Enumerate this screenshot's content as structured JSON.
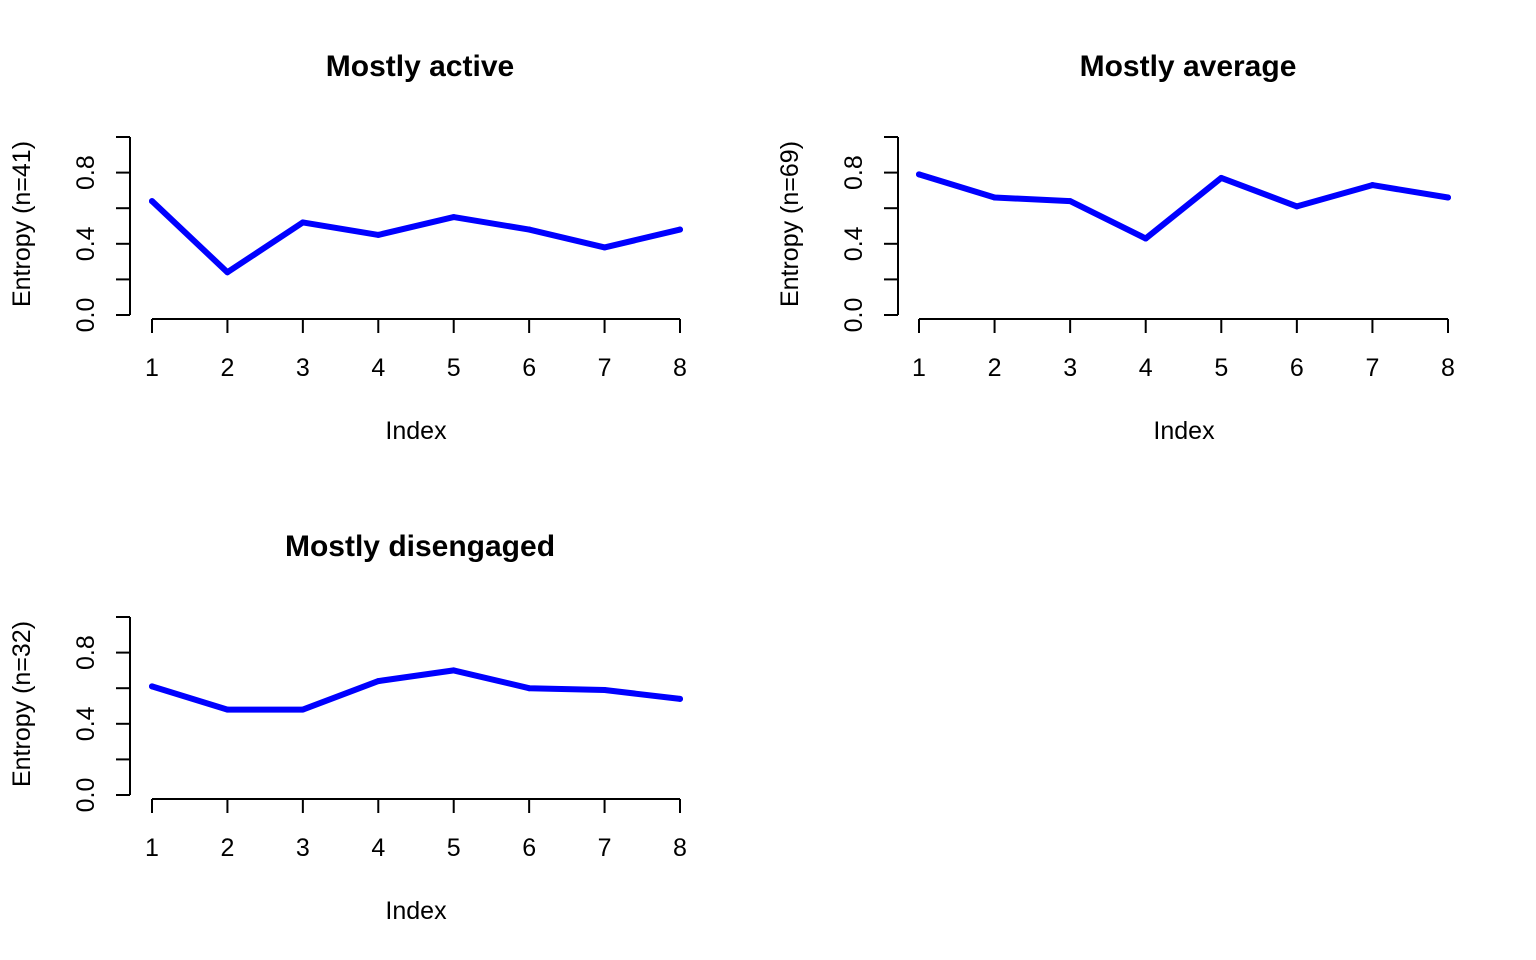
{
  "chart_data": [
    {
      "type": "line",
      "title": "Mostly active",
      "xlabel": "Index",
      "ylabel": "Entropy (n=41)",
      "x": [
        1,
        2,
        3,
        4,
        5,
        6,
        7,
        8
      ],
      "x_ticks": [
        "1",
        "2",
        "3",
        "4",
        "5",
        "6",
        "7",
        "8"
      ],
      "y_ticks": [
        "0.0",
        "0.4",
        "0.8"
      ],
      "ylim": [
        0,
        1
      ],
      "grid": false,
      "series": [
        {
          "values": [
            0.64,
            0.24,
            0.52,
            0.45,
            0.55,
            0.48,
            0.38,
            0.48
          ],
          "color": "#0000ff"
        }
      ]
    },
    {
      "type": "line",
      "title": "Mostly average",
      "xlabel": "Index",
      "ylabel": "Entropy (n=69)",
      "x": [
        1,
        2,
        3,
        4,
        5,
        6,
        7,
        8
      ],
      "x_ticks": [
        "1",
        "2",
        "3",
        "4",
        "5",
        "6",
        "7",
        "8"
      ],
      "y_ticks": [
        "0.0",
        "0.4",
        "0.8"
      ],
      "ylim": [
        0,
        1
      ],
      "grid": false,
      "series": [
        {
          "values": [
            0.79,
            0.66,
            0.64,
            0.43,
            0.77,
            0.61,
            0.73,
            0.66
          ],
          "color": "#0000ff"
        }
      ]
    },
    {
      "type": "line",
      "title": "Mostly disengaged",
      "xlabel": "Index",
      "ylabel": "Entropy (n=32)",
      "x": [
        1,
        2,
        3,
        4,
        5,
        6,
        7,
        8
      ],
      "x_ticks": [
        "1",
        "2",
        "3",
        "4",
        "5",
        "6",
        "7",
        "8"
      ],
      "y_ticks": [
        "0.0",
        "0.4",
        "0.8"
      ],
      "ylim": [
        0,
        1
      ],
      "grid": false,
      "series": [
        {
          "values": [
            0.61,
            0.48,
            0.48,
            0.64,
            0.7,
            0.6,
            0.59,
            0.54
          ],
          "color": "#0000ff"
        }
      ]
    }
  ]
}
